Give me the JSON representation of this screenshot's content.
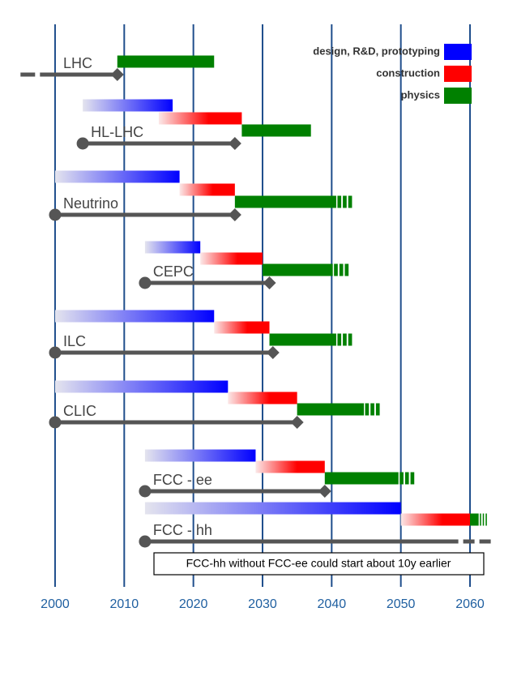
{
  "chart_data": {
    "type": "timeline",
    "xlim": [
      1995,
      2063
    ],
    "xticks": [
      2000,
      2010,
      2020,
      2030,
      2040,
      2050,
      2060
    ],
    "grid": true,
    "legend_position": "upper right",
    "series": [
      {
        "name": "design, R&D, prototyping",
        "color": "#0000ff"
      },
      {
        "name": "construction",
        "color": "#ff0000"
      },
      {
        "name": "physics",
        "color": "#008000"
      }
    ],
    "projects": [
      {
        "name": "LHC",
        "physics": [
          2009,
          2023
        ],
        "line": [
          1995,
          2009
        ],
        "line_open_start": true
      },
      {
        "name": "HL-LHC",
        "design": [
          2004,
          2017
        ],
        "construction": [
          2015,
          2027
        ],
        "physics": [
          2027,
          2037
        ],
        "line": [
          2004,
          2026
        ]
      },
      {
        "name": "Neutrino",
        "design": [
          2000,
          2018
        ],
        "construction": [
          2018,
          2026
        ],
        "physics": [
          2026,
          2043
        ],
        "line": [
          2000,
          2026
        ],
        "physics_open_end": true
      },
      {
        "name": "CEPC",
        "design": [
          2013,
          2021
        ],
        "construction": [
          2021,
          2030
        ],
        "physics": [
          2030,
          2042.5
        ],
        "line": [
          2013,
          2031
        ],
        "physics_open_end": true
      },
      {
        "name": "ILC",
        "design": [
          2000,
          2023
        ],
        "construction": [
          2023,
          2031
        ],
        "physics": [
          2031,
          2043
        ],
        "line": [
          2000,
          2031.5
        ],
        "physics_open_end": true
      },
      {
        "name": "CLIC",
        "design": [
          2000,
          2025
        ],
        "construction": [
          2025,
          2035
        ],
        "physics": [
          2035,
          2047
        ],
        "line": [
          2000,
          2035
        ],
        "physics_open_end": true
      },
      {
        "name": "FCC - ee",
        "design": [
          2013,
          2029
        ],
        "construction": [
          2029,
          2039
        ],
        "physics": [
          2039,
          2052
        ],
        "line": [
          2013,
          2039
        ],
        "physics_open_end": true
      },
      {
        "name": "FCC - hh",
        "design": [
          2013,
          2050
        ],
        "construction": [
          2050,
          2060
        ],
        "physics": [
          2060,
          2062.5
        ],
        "line": [
          2013,
          2063
        ],
        "line_open_end": true,
        "physics_open_end": true
      }
    ],
    "annotation": "FCC-hh without FCC-ee could start about 10y earlier"
  }
}
